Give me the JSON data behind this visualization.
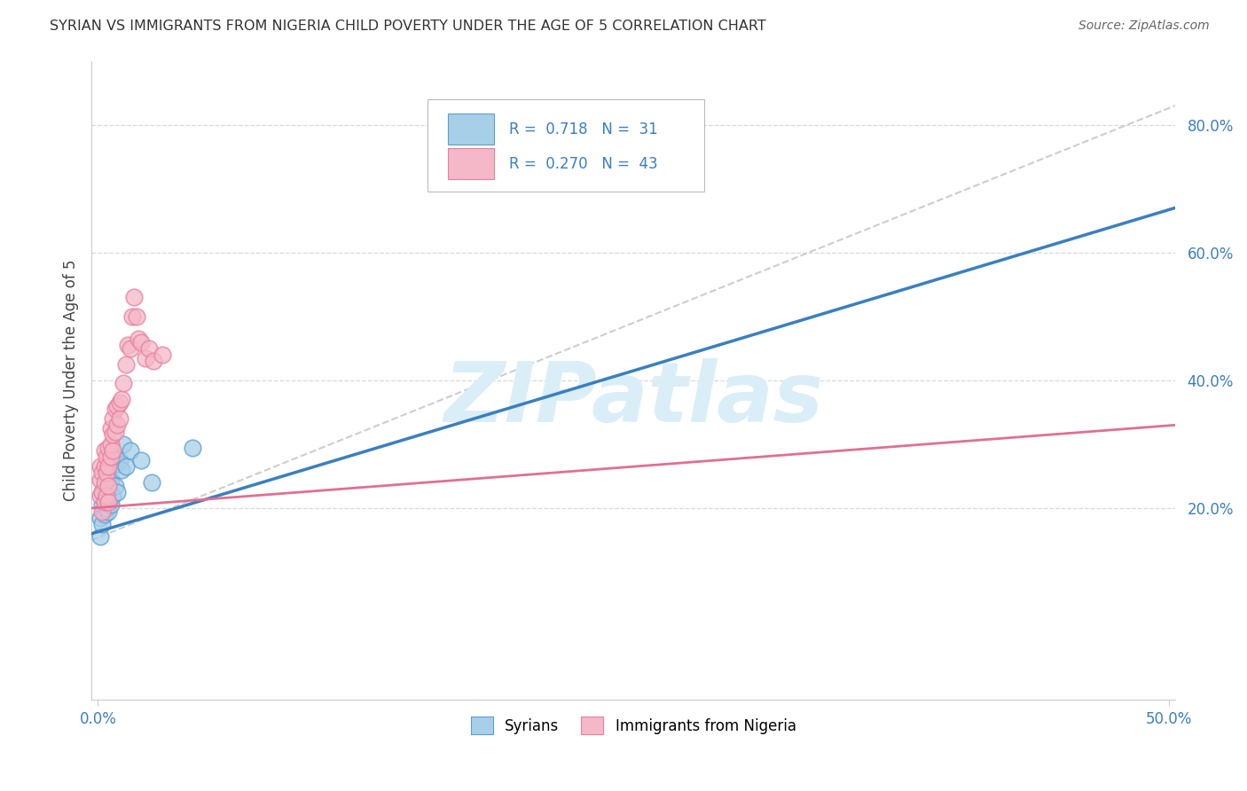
{
  "title": "SYRIAN VS IMMIGRANTS FROM NIGERIA CHILD POVERTY UNDER THE AGE OF 5 CORRELATION CHART",
  "source": "Source: ZipAtlas.com",
  "ylabel": "Child Poverty Under the Age of 5",
  "xlabel_syrians": "Syrians",
  "xlabel_nigeria": "Immigrants from Nigeria",
  "xlim": [
    -0.003,
    0.503
  ],
  "ylim": [
    -0.1,
    0.9
  ],
  "xticks": [
    0.0,
    0.5
  ],
  "xtick_labels": [
    "0.0%",
    "50.0%"
  ],
  "yticks": [
    0.2,
    0.4,
    0.6,
    0.8
  ],
  "ytick_labels": [
    "20.0%",
    "40.0%",
    "60.0%",
    "80.0%"
  ],
  "R_syrian": 0.718,
  "N_syrian": 31,
  "R_nigeria": 0.27,
  "N_nigeria": 43,
  "color_syrian": "#a8cfe8",
  "color_nigeria": "#f4b8c8",
  "color_edge_syrian": "#5b9fd4",
  "color_edge_nigeria": "#e87fa0",
  "color_line_syrian": "#3a7fc1",
  "color_line_nigeria": "#e07090",
  "color_line_gray": "#c8c8c8",
  "watermark": "ZIPatlas",
  "watermark_color": "#daeef8",
  "syrians_x": [
    0.001,
    0.001,
    0.002,
    0.002,
    0.002,
    0.003,
    0.003,
    0.003,
    0.004,
    0.004,
    0.004,
    0.005,
    0.005,
    0.005,
    0.006,
    0.006,
    0.006,
    0.007,
    0.007,
    0.008,
    0.008,
    0.009,
    0.009,
    0.01,
    0.011,
    0.012,
    0.013,
    0.015,
    0.02,
    0.025,
    0.044
  ],
  "syrians_y": [
    0.155,
    0.185,
    0.175,
    0.205,
    0.225,
    0.19,
    0.215,
    0.235,
    0.2,
    0.22,
    0.245,
    0.195,
    0.225,
    0.245,
    0.205,
    0.245,
    0.265,
    0.22,
    0.285,
    0.235,
    0.275,
    0.225,
    0.27,
    0.275,
    0.26,
    0.3,
    0.265,
    0.29,
    0.275,
    0.24,
    0.295
  ],
  "nigeria_x": [
    0.001,
    0.001,
    0.001,
    0.002,
    0.002,
    0.002,
    0.003,
    0.003,
    0.003,
    0.003,
    0.004,
    0.004,
    0.004,
    0.005,
    0.005,
    0.005,
    0.005,
    0.006,
    0.006,
    0.006,
    0.007,
    0.007,
    0.007,
    0.008,
    0.008,
    0.009,
    0.009,
    0.01,
    0.01,
    0.011,
    0.012,
    0.013,
    0.014,
    0.015,
    0.016,
    0.017,
    0.018,
    0.019,
    0.02,
    0.022,
    0.024,
    0.026,
    0.03
  ],
  "nigeria_y": [
    0.22,
    0.245,
    0.265,
    0.195,
    0.225,
    0.255,
    0.21,
    0.24,
    0.265,
    0.29,
    0.22,
    0.255,
    0.28,
    0.21,
    0.235,
    0.265,
    0.295,
    0.28,
    0.3,
    0.325,
    0.29,
    0.315,
    0.34,
    0.32,
    0.355,
    0.33,
    0.36,
    0.34,
    0.365,
    0.37,
    0.395,
    0.425,
    0.455,
    0.45,
    0.5,
    0.53,
    0.5,
    0.465,
    0.46,
    0.435,
    0.45,
    0.43,
    0.44
  ],
  "line_syrian_x0": 0.0,
  "line_syrian_y0": 0.16,
  "line_syrian_x1": 0.5,
  "line_syrian_y1": 0.67,
  "line_nigeria_x0": 0.0,
  "line_nigeria_y0": 0.2,
  "line_nigeria_y1": 0.33,
  "line_gray_x0": 0.0,
  "line_gray_y0": 0.15,
  "line_gray_x1": 0.5,
  "line_gray_y1": 0.83
}
